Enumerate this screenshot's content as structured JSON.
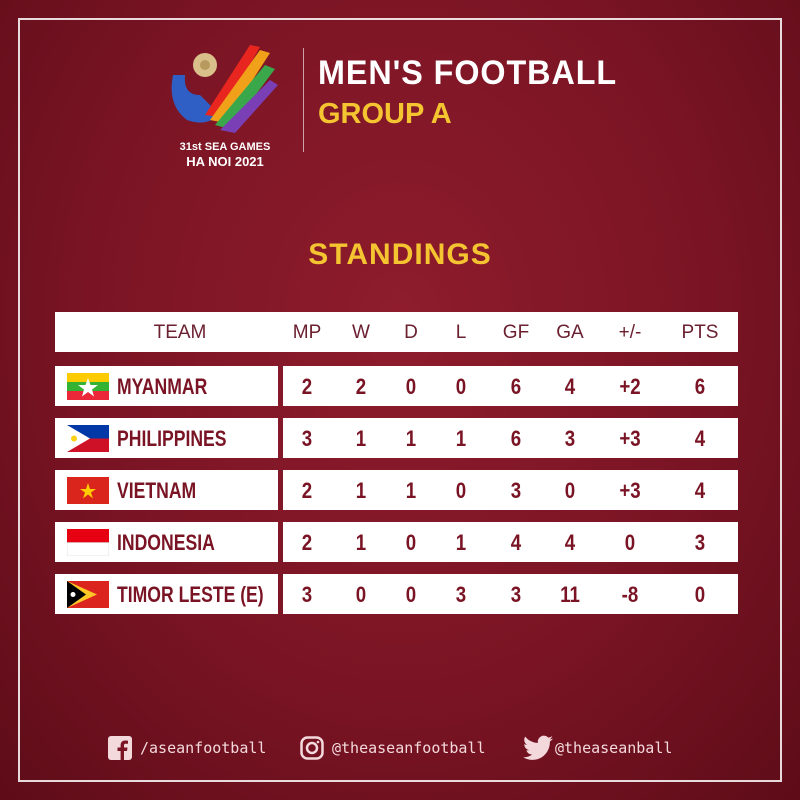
{
  "logo": {
    "line1": "31st SEA GAMES",
    "line2": "HA NOI 2021"
  },
  "header": {
    "title": "MEN'S FOOTBALL",
    "subtitle": "GROUP A"
  },
  "section_title": "STANDINGS",
  "table": {
    "columns": [
      "TEAM",
      "MP",
      "W",
      "D",
      "L",
      "GF",
      "GA",
      "+/-",
      "PTS"
    ],
    "rows": [
      {
        "flag": "myanmar-flag",
        "team": "MYANMAR",
        "values": [
          "2",
          "2",
          "0",
          "0",
          "6",
          "4",
          "+2",
          "6"
        ]
      },
      {
        "flag": "philippines-flag",
        "team": "PHILIPPINES",
        "values": [
          "3",
          "1",
          "1",
          "1",
          "6",
          "3",
          "+3",
          "4"
        ]
      },
      {
        "flag": "vietnam-flag",
        "team": "VIETNAM",
        "values": [
          "2",
          "1",
          "1",
          "0",
          "3",
          "0",
          "+3",
          "4"
        ]
      },
      {
        "flag": "indonesia-flag",
        "team": "INDONESIA",
        "values": [
          "2",
          "1",
          "0",
          "1",
          "4",
          "4",
          "0",
          "3"
        ]
      },
      {
        "flag": "timor-leste-flag",
        "team": "TIMOR LESTE (E)",
        "values": [
          "3",
          "0",
          "0",
          "3",
          "3",
          "11",
          "-8",
          "0"
        ]
      }
    ]
  },
  "footer": {
    "facebook": "/aseanfootball",
    "instagram": "@theaseanfootball",
    "twitter": "@theaseanball"
  },
  "colors": {
    "background": "#7a1424",
    "accent": "#f4c431",
    "text_dark": "#7a1424"
  }
}
